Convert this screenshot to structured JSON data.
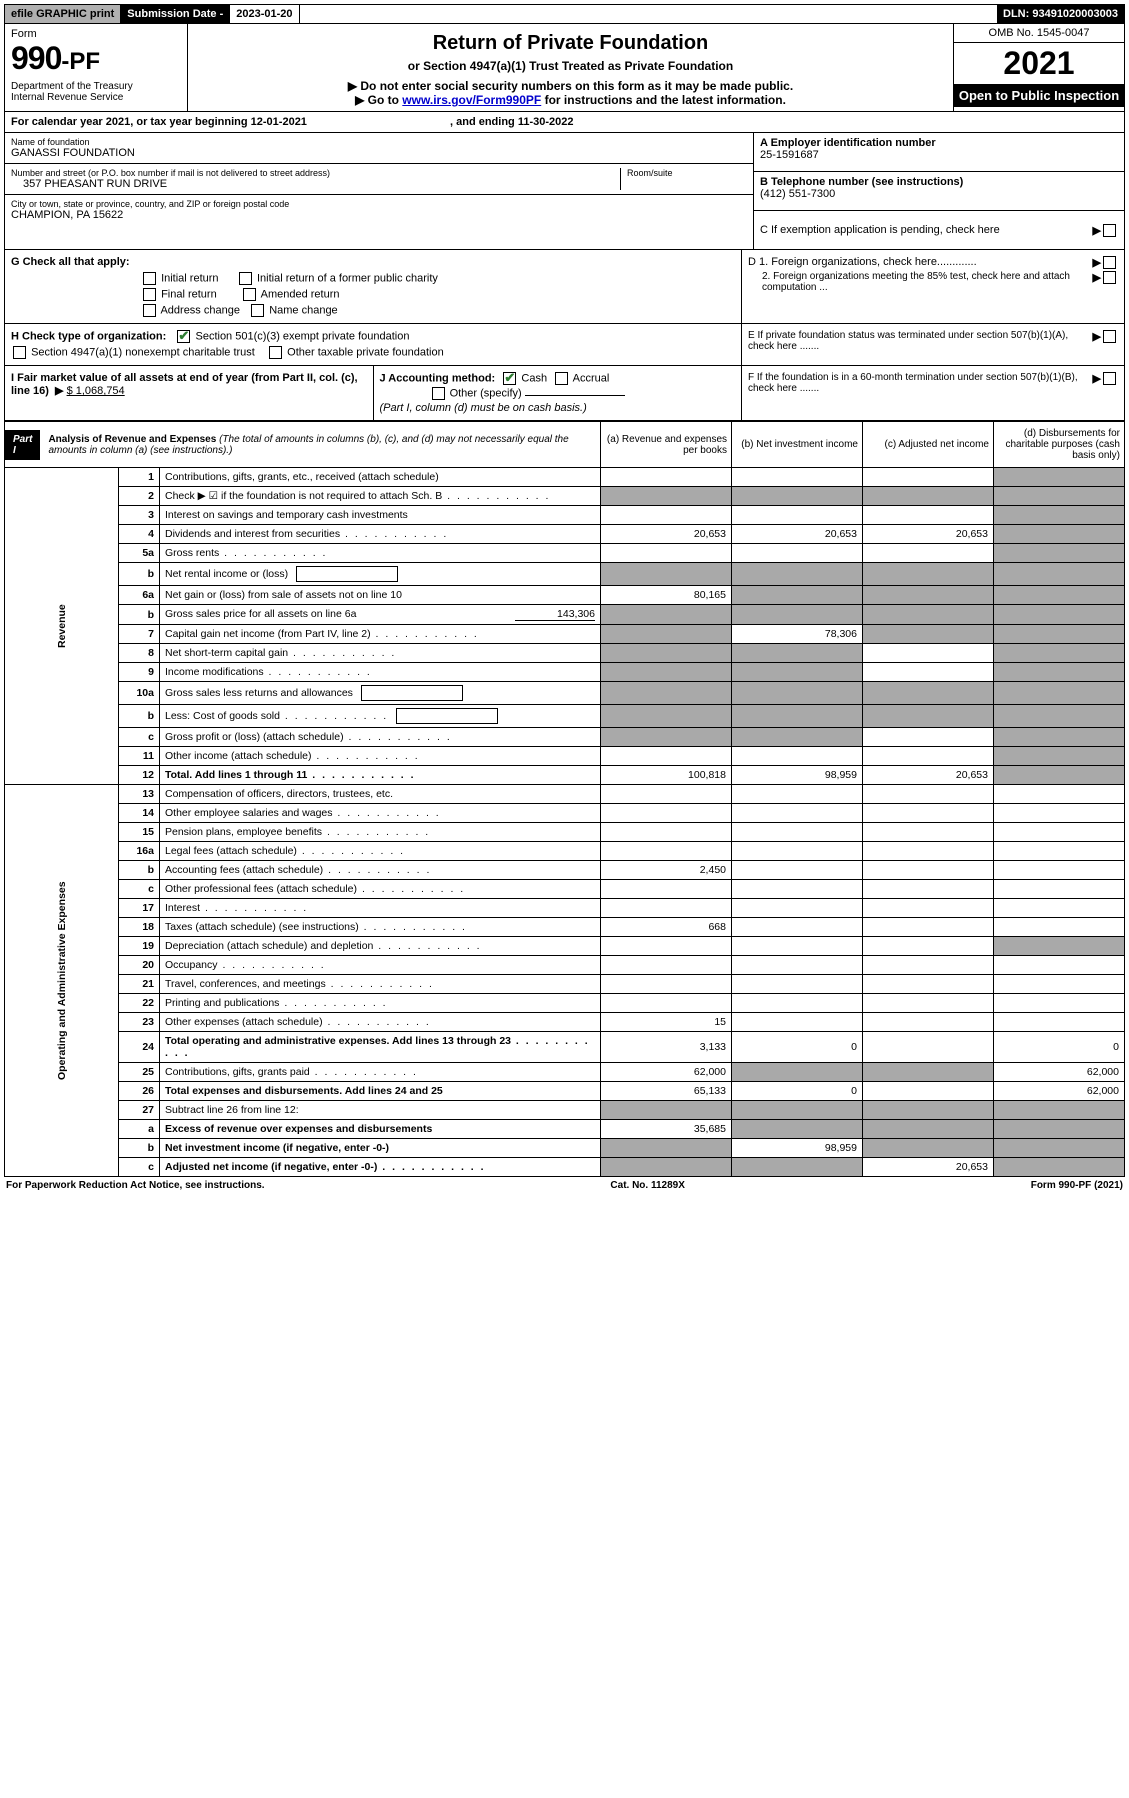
{
  "topbar": {
    "efile": "efile GRAPHIC print",
    "submission_label": "Submission Date - 2023-01-20",
    "dln": "DLN: 93491020003003"
  },
  "header": {
    "form_label": "Form",
    "form_990": "990-PF",
    "dept": "Department of the Treasury",
    "irs": "Internal Revenue Service",
    "title": "Return of Private Foundation",
    "subtitle": "or Section 4947(a)(1) Trust Treated as Private Foundation",
    "note1": "▶ Do not enter social security numbers on this form as it may be made public.",
    "note2_pre": "▶ Go to ",
    "note2_link": "www.irs.gov/Form990PF",
    "note2_post": " for instructions and the latest information.",
    "omb": "OMB No. 1545-0047",
    "tax_year": "2021",
    "open": "Open to Public Inspection"
  },
  "calendar": {
    "text_pre": "For calendar year 2021, or tax year beginning ",
    "begin": "12-01-2021",
    "mid": " , and ending ",
    "end": "11-30-2022"
  },
  "info": {
    "name_label": "Name of foundation",
    "name": "GANASSI FOUNDATION",
    "addr_label": "Number and street (or P.O. box number if mail is not delivered to street address)",
    "room_label": "Room/suite",
    "addr": "357 PHEASANT RUN DRIVE",
    "city_label": "City or town, state or province, country, and ZIP or foreign postal code",
    "city": "CHAMPION, PA  15622",
    "a_label": "A Employer identification number",
    "a_value": "25-1591687",
    "b_label": "B Telephone number (see instructions)",
    "b_value": "(412) 551-7300",
    "c_label": "C If exemption application is pending, check here"
  },
  "g": {
    "label": "G Check all that apply:",
    "initial": "Initial return",
    "initial_former": "Initial return of a former public charity",
    "final": "Final return",
    "amended": "Amended return",
    "address": "Address change",
    "name": "Name change"
  },
  "h": {
    "label": "H Check type of organization:",
    "opt1": "Section 501(c)(3) exempt private foundation",
    "opt2": "Section 4947(a)(1) nonexempt charitable trust",
    "opt3": "Other taxable private foundation"
  },
  "d": {
    "d1": "D 1. Foreign organizations, check here.............",
    "d2": "2. Foreign organizations meeting the 85% test, check here and attach computation ...",
    "e": "E  If private foundation status was terminated under section 507(b)(1)(A), check here .......",
    "f": "F  If the foundation is in a 60-month termination under section 507(b)(1)(B), check here ......."
  },
  "i": {
    "label": "I Fair market value of all assets at end of year (from Part II, col. (c), line 16)",
    "arrow": "▶",
    "value": "$  1,068,754"
  },
  "j": {
    "label": "J Accounting method:",
    "cash": "Cash",
    "accrual": "Accrual",
    "other": "Other (specify)",
    "note": "(Part I, column (d) must be on cash basis.)"
  },
  "part1": {
    "label": "Part I",
    "title": "Analysis of Revenue and Expenses",
    "title_note": " (The total of amounts in columns (b), (c), and (d) may not necessarily equal the amounts in column (a) (see instructions).)",
    "col_a": "(a)  Revenue and expenses per books",
    "col_b": "(b)  Net investment income",
    "col_c": "(c)  Adjusted net income",
    "col_d": "(d)  Disbursements for charitable purposes (cash basis only)"
  },
  "vert": {
    "revenue": "Revenue",
    "expenses": "Operating and Administrative Expenses"
  },
  "rows": [
    {
      "n": "1",
      "desc": "Contributions, gifts, grants, etc., received (attach schedule)",
      "a": "",
      "b_shade": false,
      "b": "",
      "c": "",
      "d_shade": true
    },
    {
      "n": "2",
      "desc": "Check ▶ ☑ if the foundation is not required to attach Sch. B",
      "a_shade": true,
      "b_shade": true,
      "c_shade": true,
      "d_shade": true,
      "dots": true
    },
    {
      "n": "3",
      "desc": "Interest on savings and temporary cash investments",
      "a": "",
      "b": "",
      "c": "",
      "d_shade": true
    },
    {
      "n": "4",
      "desc": "Dividends and interest from securities",
      "a": "20,653",
      "b": "20,653",
      "c": "20,653",
      "d_shade": true,
      "dots": true
    },
    {
      "n": "5a",
      "desc": "Gross rents",
      "a": "",
      "b": "",
      "c": "",
      "d_shade": true,
      "dots": true
    },
    {
      "n": "b",
      "desc": "Net rental income or (loss)",
      "a_shade": true,
      "b_shade": true,
      "c_shade": true,
      "d_shade": true,
      "inline_box": true
    },
    {
      "n": "6a",
      "desc": "Net gain or (loss) from sale of assets not on line 10",
      "a": "80,165",
      "b_shade": true,
      "c_shade": true,
      "d_shade": true
    },
    {
      "n": "b",
      "desc": "Gross sales price for all assets on line 6a",
      "a_shade": true,
      "b_shade": true,
      "c_shade": true,
      "d_shade": true,
      "inline_val": "143,306"
    },
    {
      "n": "7",
      "desc": "Capital gain net income (from Part IV, line 2)",
      "a_shade": true,
      "b": "78,306",
      "c_shade": true,
      "d_shade": true,
      "dots": true
    },
    {
      "n": "8",
      "desc": "Net short-term capital gain",
      "a_shade": true,
      "b_shade": true,
      "c": "",
      "d_shade": true,
      "dots": true
    },
    {
      "n": "9",
      "desc": "Income modifications",
      "a_shade": true,
      "b_shade": true,
      "c": "",
      "d_shade": true,
      "dots": true
    },
    {
      "n": "10a",
      "desc": "Gross sales less returns and allowances",
      "a_shade": true,
      "b_shade": true,
      "c_shade": true,
      "d_shade": true,
      "inline_box": true
    },
    {
      "n": "b",
      "desc": "Less: Cost of goods sold",
      "a_shade": true,
      "b_shade": true,
      "c_shade": true,
      "d_shade": true,
      "dots": true,
      "inline_box": true
    },
    {
      "n": "c",
      "desc": "Gross profit or (loss) (attach schedule)",
      "a_shade": true,
      "b_shade": true,
      "c": "",
      "d_shade": true,
      "dots": true
    },
    {
      "n": "11",
      "desc": "Other income (attach schedule)",
      "a": "",
      "b": "",
      "c": "",
      "d_shade": true,
      "dots": true
    },
    {
      "n": "12",
      "desc": "Total. Add lines 1 through 11",
      "a": "100,818",
      "b": "98,959",
      "c": "20,653",
      "d_shade": true,
      "bold": true,
      "dots": true
    }
  ],
  "exp_rows": [
    {
      "n": "13",
      "desc": "Compensation of officers, directors, trustees, etc.",
      "a": "",
      "b": "",
      "c": "",
      "d": ""
    },
    {
      "n": "14",
      "desc": "Other employee salaries and wages",
      "a": "",
      "b": "",
      "c": "",
      "d": "",
      "dots": true
    },
    {
      "n": "15",
      "desc": "Pension plans, employee benefits",
      "a": "",
      "b": "",
      "c": "",
      "d": "",
      "dots": true
    },
    {
      "n": "16a",
      "desc": "Legal fees (attach schedule)",
      "a": "",
      "b": "",
      "c": "",
      "d": "",
      "dots": true
    },
    {
      "n": "b",
      "desc": "Accounting fees (attach schedule)",
      "a": "2,450",
      "b": "",
      "c": "",
      "d": "",
      "dots": true
    },
    {
      "n": "c",
      "desc": "Other professional fees (attach schedule)",
      "a": "",
      "b": "",
      "c": "",
      "d": "",
      "dots": true
    },
    {
      "n": "17",
      "desc": "Interest",
      "a": "",
      "b": "",
      "c": "",
      "d": "",
      "dots": true
    },
    {
      "n": "18",
      "desc": "Taxes (attach schedule) (see instructions)",
      "a": "668",
      "b": "",
      "c": "",
      "d": "",
      "dots": true
    },
    {
      "n": "19",
      "desc": "Depreciation (attach schedule) and depletion",
      "a": "",
      "b": "",
      "c": "",
      "d_shade": true,
      "dots": true
    },
    {
      "n": "20",
      "desc": "Occupancy",
      "a": "",
      "b": "",
      "c": "",
      "d": "",
      "dots": true
    },
    {
      "n": "21",
      "desc": "Travel, conferences, and meetings",
      "a": "",
      "b": "",
      "c": "",
      "d": "",
      "dots": true
    },
    {
      "n": "22",
      "desc": "Printing and publications",
      "a": "",
      "b": "",
      "c": "",
      "d": "",
      "dots": true
    },
    {
      "n": "23",
      "desc": "Other expenses (attach schedule)",
      "a": "15",
      "b": "",
      "c": "",
      "d": "",
      "dots": true
    },
    {
      "n": "24",
      "desc": "Total operating and administrative expenses. Add lines 13 through 23",
      "a": "3,133",
      "b": "0",
      "c": "",
      "d": "0",
      "bold": true,
      "dots": true
    },
    {
      "n": "25",
      "desc": "Contributions, gifts, grants paid",
      "a": "62,000",
      "b_shade": true,
      "c_shade": true,
      "d": "62,000",
      "dots": true
    },
    {
      "n": "26",
      "desc": "Total expenses and disbursements. Add lines 24 and 25",
      "a": "65,133",
      "b": "0",
      "c": "",
      "d": "62,000",
      "bold": true
    },
    {
      "n": "27",
      "desc": "Subtract line 26 from line 12:",
      "a_shade": true,
      "b_shade": true,
      "c_shade": true,
      "d_shade": true
    },
    {
      "n": "a",
      "desc": "Excess of revenue over expenses and disbursements",
      "a": "35,685",
      "b_shade": true,
      "c_shade": true,
      "d_shade": true,
      "bold": true
    },
    {
      "n": "b",
      "desc": "Net investment income (if negative, enter -0-)",
      "a_shade": true,
      "b": "98,959",
      "c_shade": true,
      "d_shade": true,
      "bold": true
    },
    {
      "n": "c",
      "desc": "Adjusted net income (if negative, enter -0-)",
      "a_shade": true,
      "b_shade": true,
      "c": "20,653",
      "d_shade": true,
      "bold": true,
      "dots": true
    }
  ],
  "footer": {
    "left": "For Paperwork Reduction Act Notice, see instructions.",
    "mid": "Cat. No. 11289X",
    "right": "Form 990-PF (2021)"
  },
  "colors": {
    "shade": "#a9a9a9",
    "black": "#000000",
    "link": "#0000cd",
    "check": "#2e7d32"
  }
}
